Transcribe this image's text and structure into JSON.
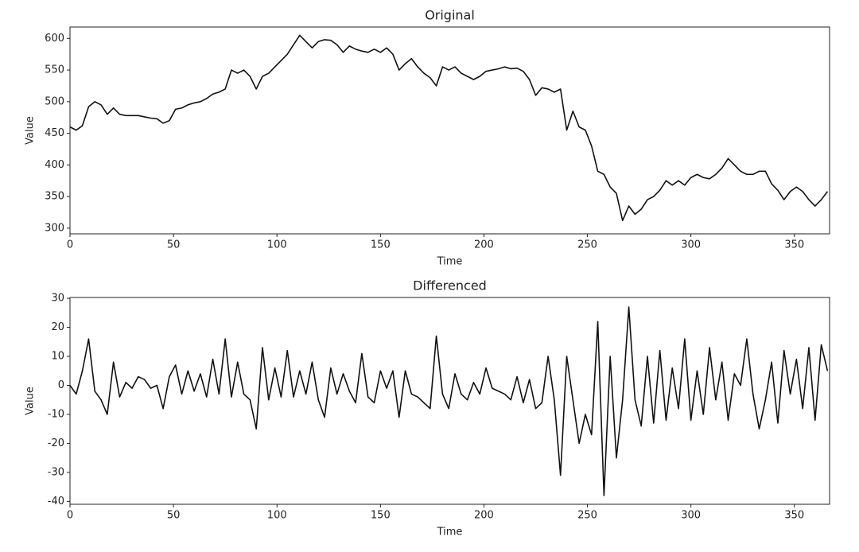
{
  "chart_data": [
    {
      "type": "line",
      "title": "Original",
      "x_label": "Time",
      "y_label": "Value",
      "x": [
        0,
        3,
        6,
        9,
        12,
        15,
        18,
        21,
        24,
        27,
        30,
        33,
        36,
        39,
        42,
        45,
        48,
        51,
        54,
        57,
        60,
        63,
        66,
        69,
        72,
        75,
        78,
        81,
        84,
        87,
        90,
        93,
        96,
        99,
        102,
        105,
        108,
        111,
        114,
        117,
        120,
        123,
        126,
        129,
        132,
        135,
        138,
        141,
        144,
        147,
        150,
        153,
        156,
        159,
        162,
        165,
        168,
        171,
        174,
        177,
        180,
        183,
        186,
        189,
        192,
        195,
        198,
        201,
        204,
        207,
        210,
        213,
        216,
        219,
        222,
        225,
        228,
        231,
        234,
        237,
        240,
        243,
        246,
        249,
        252,
        255,
        258,
        261,
        264,
        267,
        270,
        273,
        276,
        279,
        282,
        285,
        288,
        291,
        294,
        297,
        300,
        303,
        306,
        309,
        312,
        315,
        318,
        321,
        324,
        327,
        330,
        333,
        336,
        339,
        342,
        345,
        348,
        351,
        354,
        357,
        360,
        363,
        366
      ],
      "series": [
        {
          "name": "Original",
          "color": "#111111",
          "values": [
            460,
            455,
            462,
            492,
            500,
            495,
            480,
            490,
            480,
            478,
            478,
            478,
            476,
            474,
            473,
            466,
            470,
            488,
            490,
            495,
            498,
            500,
            505,
            512,
            515,
            520,
            550,
            545,
            550,
            540,
            520,
            540,
            545,
            555,
            565,
            575,
            590,
            605,
            595,
            585,
            595,
            598,
            597,
            590,
            578,
            588,
            583,
            580,
            578,
            583,
            578,
            585,
            575,
            550,
            560,
            568,
            555,
            545,
            538,
            525,
            555,
            550,
            555,
            545,
            540,
            535,
            540,
            548,
            550,
            552,
            555,
            552,
            553,
            548,
            535,
            510,
            522,
            520,
            515,
            520,
            455,
            485,
            460,
            455,
            430,
            390,
            385,
            365,
            355,
            312,
            335,
            322,
            330,
            345,
            350,
            360,
            375,
            368,
            375,
            368,
            380,
            385,
            380,
            378,
            385,
            395,
            410,
            400,
            390,
            385,
            385,
            390,
            390,
            370,
            360,
            345,
            358,
            365,
            358,
            345,
            335,
            345,
            358
          ]
        }
      ],
      "xlim": [
        0,
        367
      ],
      "xticks": [
        0,
        50,
        100,
        150,
        200,
        250,
        300,
        350
      ],
      "ylim": [
        291,
        618
      ],
      "yticks": [
        300,
        350,
        400,
        450,
        500,
        550,
        600
      ]
    },
    {
      "type": "line",
      "title": "Differenced",
      "x_label": "Time",
      "y_label": "Value",
      "x": [
        0,
        3,
        6,
        9,
        12,
        15,
        18,
        21,
        24,
        27,
        30,
        33,
        36,
        39,
        42,
        45,
        48,
        51,
        54,
        57,
        60,
        63,
        66,
        69,
        72,
        75,
        78,
        81,
        84,
        87,
        90,
        93,
        96,
        99,
        102,
        105,
        108,
        111,
        114,
        117,
        120,
        123,
        126,
        129,
        132,
        135,
        138,
        141,
        144,
        147,
        150,
        153,
        156,
        159,
        162,
        165,
        168,
        171,
        174,
        177,
        180,
        183,
        186,
        189,
        192,
        195,
        198,
        201,
        204,
        207,
        210,
        213,
        216,
        219,
        222,
        225,
        228,
        231,
        234,
        237,
        240,
        243,
        246,
        249,
        252,
        255,
        258,
        261,
        264,
        267,
        270,
        273,
        276,
        279,
        282,
        285,
        288,
        291,
        294,
        297,
        300,
        303,
        306,
        309,
        312,
        315,
        318,
        321,
        324,
        327,
        330,
        333,
        336,
        339,
        342,
        345,
        348,
        351,
        354,
        357,
        360,
        363,
        366
      ],
      "series": [
        {
          "name": "Differenced",
          "color": "#111111",
          "values": [
            0,
            -3,
            5,
            16,
            -2,
            -5,
            -10,
            8,
            -4,
            1,
            -1,
            3,
            2,
            -1,
            0,
            -8,
            3,
            7,
            -3,
            5,
            -2,
            4,
            -4,
            9,
            -3,
            16,
            -4,
            8,
            -3,
            -5,
            -15,
            13,
            -5,
            6,
            -4,
            12,
            -4,
            5,
            -3,
            8,
            -5,
            -11,
            6,
            -3,
            4,
            -2,
            -6,
            11,
            -4,
            -6,
            5,
            -1,
            5,
            -11,
            5,
            -3,
            -4,
            -6,
            -8,
            17,
            -3,
            -8,
            4,
            -3,
            -5,
            1,
            -3,
            6,
            -1,
            -2,
            -3,
            -5,
            3,
            -6,
            2,
            -8,
            -6,
            10,
            -5,
            -31,
            10,
            -5,
            -20,
            -10,
            -17,
            22,
            -38,
            10,
            -25,
            -5,
            27,
            -5,
            -14,
            10,
            -13,
            12,
            -12,
            6,
            -8,
            16,
            -12,
            5,
            -10,
            13,
            -5,
            8,
            -12,
            4,
            0,
            16,
            -3,
            -15,
            -5,
            8,
            -13,
            12,
            -3,
            9,
            -8,
            13,
            -12,
            14,
            5
          ]
        }
      ],
      "xlim": [
        0,
        367
      ],
      "xticks": [
        0,
        50,
        100,
        150,
        200,
        250,
        300,
        350
      ],
      "ylim": [
        -41,
        30.3
      ],
      "yticks": [
        -40,
        -30,
        -20,
        -10,
        0,
        10,
        20,
        30
      ]
    }
  ]
}
